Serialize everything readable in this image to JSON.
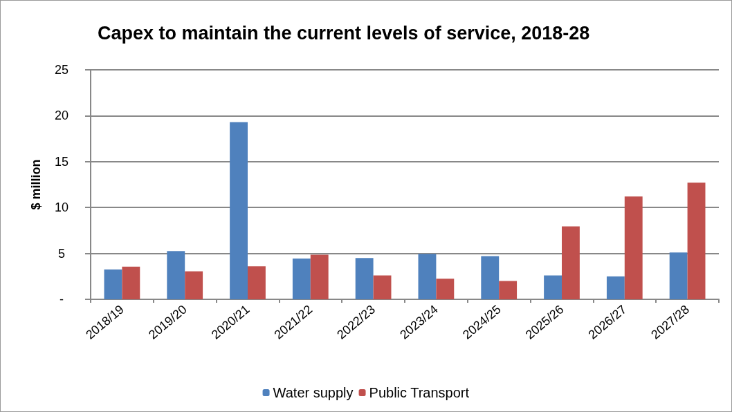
{
  "chart_data": {
    "type": "bar",
    "title": "Capex to maintain the current levels of service, 2018-28",
    "ylabel": "$ million",
    "categories": [
      "2018/19",
      "2019/20",
      "2020/21",
      "2021/22",
      "2022/23",
      "2023/24",
      "2024/25",
      "2025/26",
      "2026/27",
      "2027/28"
    ],
    "series": [
      {
        "name": "Water supply",
        "color": "#4f81bd",
        "values": [
          3.25,
          5.25,
          19.3,
          4.45,
          4.5,
          4.95,
          4.7,
          2.6,
          2.5,
          5.1
        ]
      },
      {
        "name": "Public Transport",
        "color": "#c0504d",
        "values": [
          3.55,
          3.05,
          3.6,
          4.85,
          2.6,
          2.25,
          2.0,
          7.95,
          11.2,
          12.7
        ]
      }
    ],
    "ylim": [
      0,
      25
    ],
    "yticks": [
      {
        "value": 0,
        "label": "-"
      },
      5,
      10,
      15,
      20,
      25
    ],
    "grid": "y",
    "legend": "bottom"
  }
}
